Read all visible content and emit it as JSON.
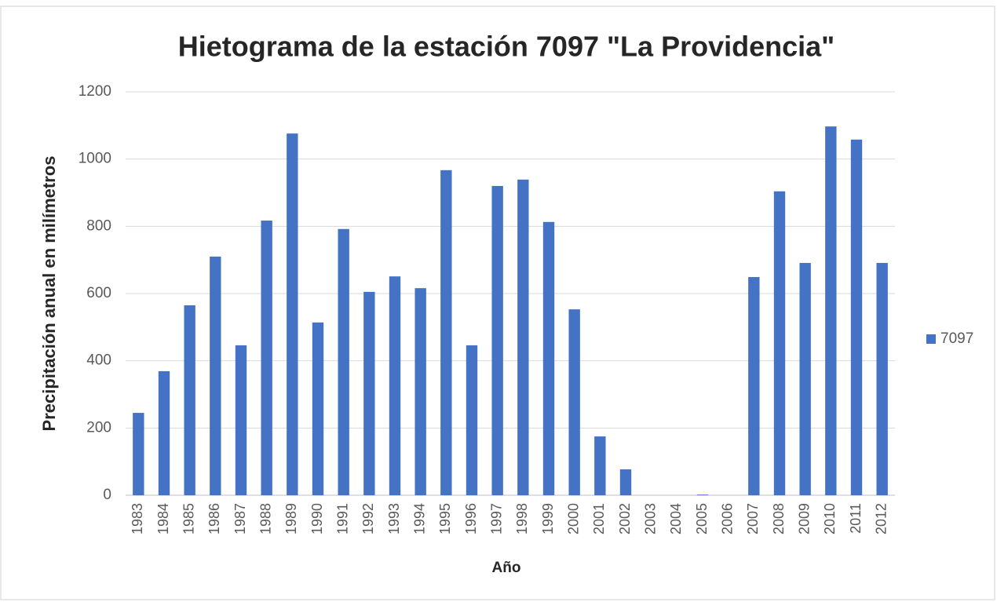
{
  "chart_data": {
    "type": "bar",
    "title": "Hietograma de la estación 7097 \"La Providencia\"",
    "x_label": "Año",
    "y_label": "Precipitación anual en milímetros",
    "categories": [
      "1983",
      "1984",
      "1985",
      "1986",
      "1987",
      "1988",
      "1989",
      "1990",
      "1991",
      "1992",
      "1993",
      "1994",
      "1995",
      "1996",
      "1997",
      "1998",
      "1999",
      "2000",
      "2001",
      "2002",
      "2003",
      "2004",
      "2005",
      "2006",
      "2007",
      "2008",
      "2009",
      "2010",
      "2011",
      "2012"
    ],
    "series": [
      {
        "name": "7097",
        "color": "#4472c4",
        "values": [
          245,
          369,
          565,
          710,
          446,
          817,
          1076,
          514,
          792,
          605,
          651,
          616,
          967,
          446,
          920,
          939,
          813,
          553,
          175,
          77,
          0,
          0,
          2,
          0,
          649,
          904,
          691,
          1097,
          1058,
          691
        ]
      }
    ],
    "ylim": [
      0,
      1200
    ],
    "yticks": [
      0,
      200,
      400,
      600,
      800,
      1000,
      1200
    ],
    "grid": true,
    "legend": "right"
  }
}
